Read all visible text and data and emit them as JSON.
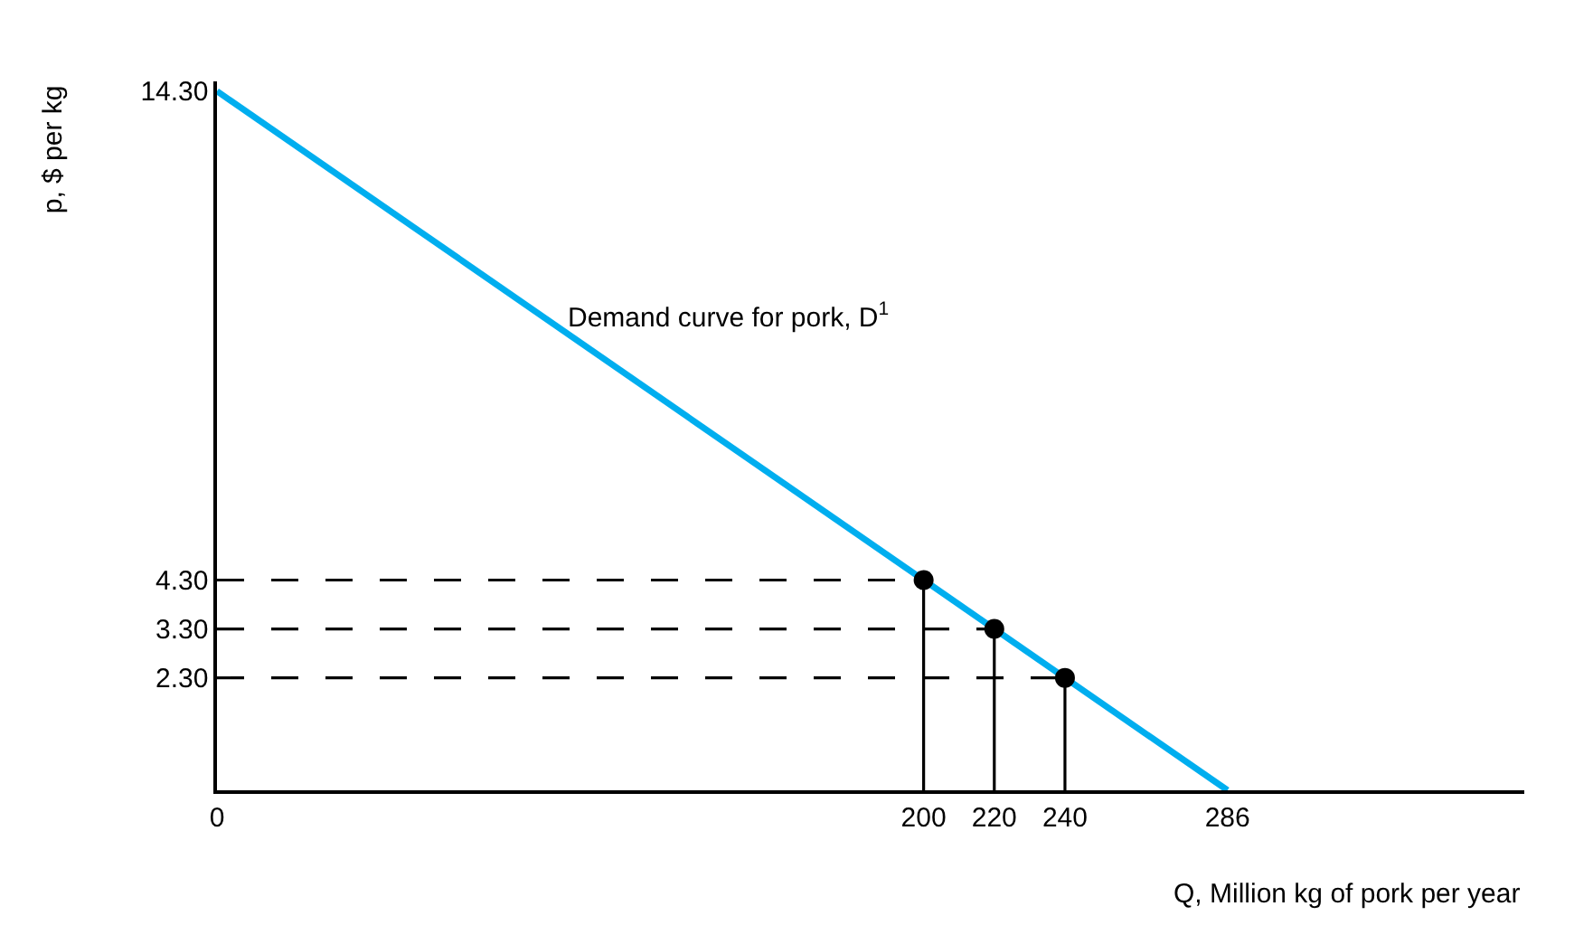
{
  "chart_data": {
    "type": "line",
    "xlabel": "Q, Million kg of pork per year",
    "ylabel": "p, $ per kg",
    "xlim": [
      0,
      370
    ],
    "ylim": [
      0,
      14.5
    ],
    "xticks": [
      0,
      200,
      220,
      240,
      286
    ],
    "yticks": [
      {
        "value": 2.3,
        "label": "2.30"
      },
      {
        "value": 3.3,
        "label": "3.30"
      },
      {
        "value": 4.3,
        "label": "4.30"
      },
      {
        "value": 14.3,
        "label": "14.30"
      }
    ],
    "annotations": [
      {
        "text": "Demand curve for pork, D$^{1}$",
        "x": 98,
        "y": 9.7
      }
    ],
    "series": [
      {
        "color": "#00aeef",
        "x": [
          0,
          286
        ],
        "values": [
          14.3,
          0
        ],
        "marker": "none",
        "line_style": "solid"
      },
      {
        "type": "line",
        "color": "#000000",
        "x": [
          0,
          200
        ],
        "values": [
          4.3,
          4.3
        ],
        "marker": "none",
        "line_style": "dashed"
      },
      {
        "type": "line",
        "color": "#000000",
        "x": [
          0,
          220
        ],
        "values": [
          3.3,
          3.3
        ],
        "marker": "none",
        "line_style": "dashed"
      },
      {
        "type": "line",
        "color": "#000000",
        "x": [
          0,
          240
        ],
        "values": [
          2.3,
          2.3
        ],
        "marker": "none",
        "line_style": "dashed"
      },
      {
        "type": "line",
        "color": "#000000",
        "x": [
          200,
          200
        ],
        "values": [
          4.3,
          0
        ],
        "marker": "none",
        "line_style": "solid"
      },
      {
        "type": "line",
        "color": "#000000",
        "x": [
          220,
          220
        ],
        "values": [
          3.3,
          0
        ],
        "marker": "none",
        "line_style": "solid"
      },
      {
        "type": "line",
        "color": "#000000",
        "x": [
          240,
          240
        ],
        "values": [
          2.3,
          0
        ],
        "marker": "none",
        "line_style": "solid"
      },
      {
        "type": "scatter",
        "color": "#000000",
        "x": [
          200,
          220,
          240
        ],
        "values": [
          4.3,
          3.3,
          2.3
        ],
        "marker": "circle"
      }
    ]
  }
}
